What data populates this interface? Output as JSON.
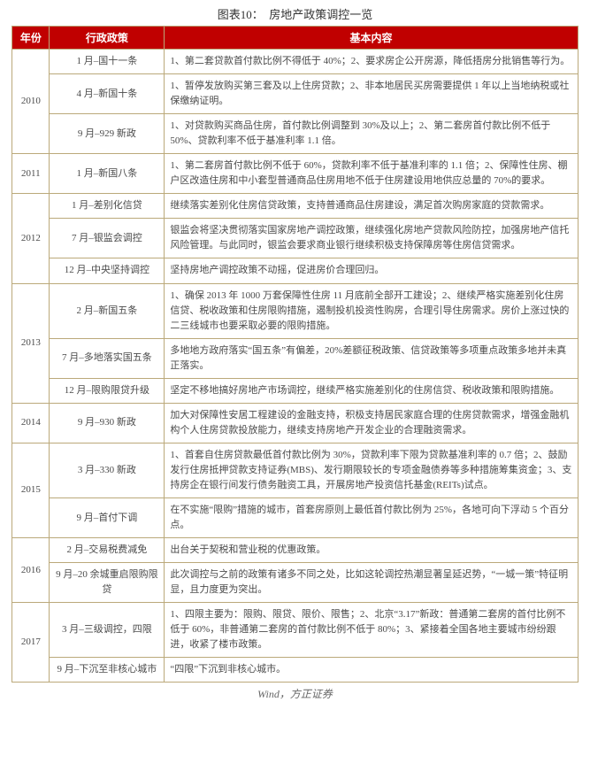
{
  "caption": "图表10：　房地产政策调控一览",
  "columns": [
    "年份",
    "行政政策",
    "基本内容"
  ],
  "rows": [
    {
      "year": "2010",
      "policy": "1 月–国十一条",
      "content": "1、第二套贷款首付款比例不得低于 40%；2、要求房企公开房源，降低捂房分批销售等行为。"
    },
    {
      "year": "2010",
      "policy": "4 月–新国十条",
      "content": "1、暂停发放购买第三套及以上住房贷款；2、非本地居民买房需要提供 1 年以上当地纳税或社保缴纳证明。"
    },
    {
      "year": "2010",
      "policy": "9 月–929 新政",
      "content": "1、对贷款购买商品住房，首付款比例调整到 30%及以上；2、第二套房首付款比例不低于 50%、贷款利率不低于基准利率 1.1 倍。"
    },
    {
      "year": "2011",
      "policy": "1 月–新国八条",
      "content": "1、第二套房首付款比例不低于 60%，贷款利率不低于基准利率的 1.1 倍；2、保障性住房、棚户区改造住房和中小套型普通商品住房用地不低于住房建设用地供应总量的 70%的要求。"
    },
    {
      "year": "2012",
      "policy": "1 月–差别化信贷",
      "content": "继续落实差别化住房信贷政策，支持普通商品住房建设，满足首次购房家庭的贷款需求。"
    },
    {
      "year": "2012",
      "policy": "7 月–银监会调控",
      "content": "银监会将坚决贯彻落实国家房地产调控政策，继续强化房地产贷款风险防控，加强房地产信托风险管理。与此同时，银监会要求商业银行继续积极支持保障房等住房信贷需求。"
    },
    {
      "year": "2012",
      "policy": "12 月–中央坚持调控",
      "content": "坚持房地产调控政策不动摇，促进房价合理回归。"
    },
    {
      "year": "2013",
      "policy": "2 月–新国五条",
      "content": "1、确保 2013 年 1000 万套保障性住房 11 月底前全部开工建设；2、继续严格实施差别化住房信贷、税收政策和住房限购措施，遏制投机投资性购房，合理引导住房需求。房价上涨过快的二三线城市也要采取必要的限购措施。"
    },
    {
      "year": "2013",
      "policy": "7 月–多地落实国五条",
      "content": "多地地方政府落实“国五条”有偏差，20%差额征税政策、信贷政策等多项重点政策多地并未真正落实。"
    },
    {
      "year": "2013",
      "policy": "12 月–限购限贷升级",
      "content": "坚定不移地搞好房地产市场调控，继续严格实施差别化的住房信贷、税收政策和限购措施。"
    },
    {
      "year": "2014",
      "policy": "9 月–930 新政",
      "content": "加大对保障性安居工程建设的金融支持，积极支持居民家庭合理的住房贷款需求，增强金融机构个人住房贷款投放能力，继续支持房地产开发企业的合理融资需求。"
    },
    {
      "year": "2015",
      "policy": "3 月–330 新政",
      "content": "1、首套自住房贷款最低首付款比例为 30%，贷款利率下限为贷款基准利率的 0.7 倍；2、鼓励发行住房抵押贷款支持证券(MBS)、发行期限较长的专项金融债券等多种措施筹集资金；3、支持房企在银行间发行债务融资工具，开展房地产投资信托基金(REITs)试点。"
    },
    {
      "year": "2015",
      "policy": "9 月–首付下调",
      "content": "在不实施“限购”措施的城市，首套房原则上最低首付款比例为 25%，各地可向下浮动 5 个百分点。"
    },
    {
      "year": "2016",
      "policy": "2 月–交易税费减免",
      "content": "出台关于契税和营业税的优惠政策。"
    },
    {
      "year": "2016",
      "policy": "9 月–20 余城重启限购限贷",
      "content": "此次调控与之前的政策有诸多不同之处，比如这轮调控热潮显著呈延迟势，“一城一策”特征明显，且力度更为突出。"
    },
    {
      "year": "2017",
      "policy": "3 月–三级调控，四限",
      "content": "1、四限主要为：限购、限贷、限价、限售；2、北京“3.17”新政：普通第二套房的首付比例不低于 60%，非普通第二套房的首付款比例不低于 80%；3、紧接着全国各地主要城市纷纷跟进，收紧了楼市政策。"
    },
    {
      "year": "2017",
      "policy": "9 月–下沉至非核心城市",
      "content": "“四限”下沉到非核心城市。"
    }
  ],
  "yearGroups": [
    {
      "label": "2010",
      "span": 3
    },
    {
      "label": "2011",
      "span": 1
    },
    {
      "label": "2012",
      "span": 3
    },
    {
      "label": "2013",
      "span": 3
    },
    {
      "label": "2014",
      "span": 1
    },
    {
      "label": "2015",
      "span": 2
    },
    {
      "label": "2016",
      "span": 2
    },
    {
      "label": "2017",
      "span": 2
    }
  ],
  "source": "Wind，方正证券",
  "colors": {
    "header_bg": "#c00000",
    "header_text": "#ffffff",
    "border": "#bba97a",
    "body_text": "#4a4a4a"
  }
}
